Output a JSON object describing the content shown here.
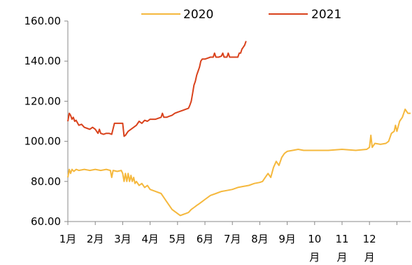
{
  "chart_data": {
    "type": "line",
    "title": "",
    "xlabel": "",
    "ylabel": "",
    "ylim": [
      60,
      160
    ],
    "yticks": [
      "60.00",
      "80.00",
      "100.00",
      "120.00",
      "140.00",
      "160.00"
    ],
    "categories": [
      "1月",
      "2月",
      "3月",
      "4月",
      "5月",
      "6月",
      "7月",
      "8月",
      "9月",
      "10月",
      "11月",
      "12月"
    ],
    "grid": false,
    "legend": "top",
    "series": [
      {
        "name": "2020",
        "color": "#F5B83D",
        "points": [
          [
            0.0,
            82
          ],
          [
            0.05,
            86
          ],
          [
            0.1,
            84
          ],
          [
            0.15,
            86
          ],
          [
            0.22,
            85
          ],
          [
            0.3,
            86
          ],
          [
            0.4,
            85.5
          ],
          [
            0.6,
            86
          ],
          [
            0.8,
            85.5
          ],
          [
            1.0,
            86
          ],
          [
            1.2,
            85.5
          ],
          [
            1.4,
            86
          ],
          [
            1.55,
            85.5
          ],
          [
            1.6,
            82
          ],
          [
            1.65,
            85.5
          ],
          [
            1.8,
            85
          ],
          [
            1.95,
            85.5
          ],
          [
            2.0,
            84
          ],
          [
            2.05,
            80
          ],
          [
            2.1,
            84
          ],
          [
            2.15,
            80
          ],
          [
            2.2,
            84
          ],
          [
            2.25,
            80
          ],
          [
            2.3,
            83
          ],
          [
            2.35,
            80
          ],
          [
            2.4,
            82
          ],
          [
            2.45,
            79
          ],
          [
            2.5,
            80
          ],
          [
            2.6,
            78
          ],
          [
            2.7,
            79
          ],
          [
            2.8,
            77
          ],
          [
            2.9,
            78
          ],
          [
            3.0,
            76
          ],
          [
            3.2,
            75
          ],
          [
            3.4,
            74
          ],
          [
            3.5,
            72
          ],
          [
            3.6,
            70
          ],
          [
            3.7,
            68
          ],
          [
            3.8,
            66
          ],
          [
            3.9,
            65
          ],
          [
            4.0,
            64
          ],
          [
            4.1,
            63
          ],
          [
            4.2,
            63.5
          ],
          [
            4.3,
            64
          ],
          [
            4.4,
            64.5
          ],
          [
            4.5,
            66
          ],
          [
            4.6,
            67
          ],
          [
            4.7,
            68
          ],
          [
            4.8,
            69
          ],
          [
            4.9,
            70
          ],
          [
            5.0,
            71
          ],
          [
            5.2,
            73
          ],
          [
            5.4,
            74
          ],
          [
            5.6,
            75
          ],
          [
            5.8,
            75.5
          ],
          [
            6.0,
            76
          ],
          [
            6.2,
            77
          ],
          [
            6.4,
            77.5
          ],
          [
            6.6,
            78
          ],
          [
            6.8,
            79
          ],
          [
            7.0,
            79.5
          ],
          [
            7.1,
            80
          ],
          [
            7.2,
            82
          ],
          [
            7.3,
            84
          ],
          [
            7.4,
            82
          ],
          [
            7.5,
            87
          ],
          [
            7.6,
            90
          ],
          [
            7.7,
            88
          ],
          [
            7.8,
            92
          ],
          [
            7.9,
            94
          ],
          [
            8.0,
            95
          ],
          [
            8.2,
            95.5
          ],
          [
            8.4,
            96
          ],
          [
            8.6,
            95.5
          ],
          [
            8.8,
            95.5
          ],
          [
            9.0,
            95.5
          ],
          [
            9.5,
            95.5
          ],
          [
            10.0,
            96
          ],
          [
            10.5,
            95.5
          ],
          [
            10.9,
            96
          ],
          [
            11.0,
            97
          ],
          [
            11.05,
            103
          ],
          [
            11.1,
            97
          ],
          [
            11.2,
            99
          ],
          [
            11.4,
            98.5
          ],
          [
            11.6,
            99
          ],
          [
            11.7,
            100
          ],
          [
            11.8,
            104
          ],
          [
            11.9,
            105
          ],
          [
            11.95,
            108
          ],
          [
            12.0,
            105
          ],
          [
            12.1,
            110
          ],
          [
            12.2,
            112
          ],
          [
            12.3,
            116
          ],
          [
            12.4,
            114
          ],
          [
            12.5,
            114
          ]
        ]
      },
      {
        "name": "2021",
        "color": "#D9421C",
        "points": [
          [
            0.0,
            110
          ],
          [
            0.05,
            114
          ],
          [
            0.1,
            113
          ],
          [
            0.15,
            111
          ],
          [
            0.2,
            112
          ],
          [
            0.25,
            110
          ],
          [
            0.3,
            110.5
          ],
          [
            0.4,
            108
          ],
          [
            0.5,
            108.5
          ],
          [
            0.6,
            107
          ],
          [
            0.7,
            106.5
          ],
          [
            0.8,
            106
          ],
          [
            0.9,
            107
          ],
          [
            1.0,
            106
          ],
          [
            1.1,
            104
          ],
          [
            1.15,
            106
          ],
          [
            1.2,
            104
          ],
          [
            1.3,
            103.5
          ],
          [
            1.4,
            104
          ],
          [
            1.5,
            104
          ],
          [
            1.6,
            103.5
          ],
          [
            1.7,
            109
          ],
          [
            2.0,
            109
          ],
          [
            2.05,
            102.5
          ],
          [
            2.1,
            103
          ],
          [
            2.2,
            105
          ],
          [
            2.3,
            106
          ],
          [
            2.4,
            107
          ],
          [
            2.5,
            108
          ],
          [
            2.6,
            110
          ],
          [
            2.7,
            109
          ],
          [
            2.8,
            110.5
          ],
          [
            2.9,
            110
          ],
          [
            3.0,
            111
          ],
          [
            3.2,
            111
          ],
          [
            3.4,
            112
          ],
          [
            3.45,
            114
          ],
          [
            3.5,
            112
          ],
          [
            3.6,
            112
          ],
          [
            3.7,
            112.5
          ],
          [
            3.8,
            113
          ],
          [
            3.9,
            114
          ],
          [
            4.0,
            114.5
          ],
          [
            4.1,
            115
          ],
          [
            4.2,
            115.5
          ],
          [
            4.3,
            116
          ],
          [
            4.4,
            116.5
          ],
          [
            4.45,
            118
          ],
          [
            4.5,
            120
          ],
          [
            4.55,
            124
          ],
          [
            4.6,
            128
          ],
          [
            4.65,
            130
          ],
          [
            4.7,
            133
          ],
          [
            4.75,
            135
          ],
          [
            4.8,
            137
          ],
          [
            4.85,
            140
          ],
          [
            4.9,
            141
          ],
          [
            5.0,
            141
          ],
          [
            5.1,
            141.5
          ],
          [
            5.2,
            142
          ],
          [
            5.3,
            142
          ],
          [
            5.35,
            144
          ],
          [
            5.4,
            142
          ],
          [
            5.5,
            142
          ],
          [
            5.6,
            142.5
          ],
          [
            5.65,
            144
          ],
          [
            5.7,
            142
          ],
          [
            5.8,
            142
          ],
          [
            5.85,
            144
          ],
          [
            5.9,
            142
          ],
          [
            6.0,
            142
          ],
          [
            6.1,
            142
          ],
          [
            6.2,
            142
          ],
          [
            6.25,
            144
          ],
          [
            6.3,
            144
          ],
          [
            6.35,
            146
          ],
          [
            6.4,
            147
          ],
          [
            6.45,
            148
          ],
          [
            6.5,
            150
          ]
        ]
      }
    ]
  }
}
